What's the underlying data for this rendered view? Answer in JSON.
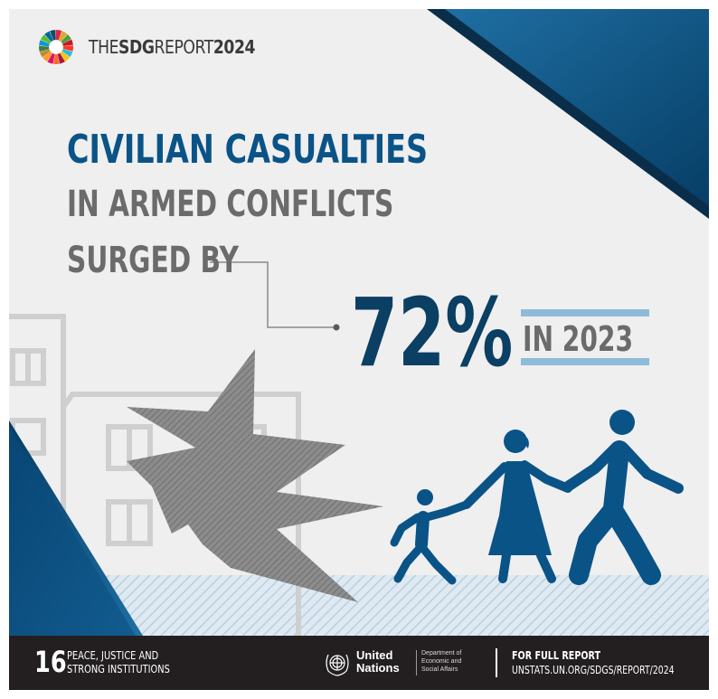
{
  "header": {
    "report_prefix": "THE",
    "report_bold": "SDG",
    "report_middle": "REPORT",
    "report_year": "2024",
    "icon": "sdg-color-wheel-icon"
  },
  "headline": {
    "line1": "CIVILIAN CASUALTIES",
    "line2": "IN ARMED CONFLICTS",
    "line3": "SURGED BY"
  },
  "stat": {
    "value": "72%",
    "period": "IN 2023"
  },
  "illustration": {
    "icons": [
      "building-outline-icon",
      "explosion-icon",
      "fleeing-family-icon"
    ]
  },
  "footer": {
    "goal_number": "16",
    "goal_name": "PEACE, JUSTICE AND\nSTRONG INSTITUTIONS",
    "un_name": "United\nNations",
    "un_department": "Department of\nEconomic and\nSocial Affairs",
    "report_label": "FOR FULL REPORT",
    "report_url": "UNSTATS.UN.ORG/SDGS/REPORT/2024"
  },
  "colors": {
    "primary_blue": "#0a5387",
    "dark_blue": "#0b3f63",
    "accent_light_blue": "#8ebcd8",
    "gray_text": "#6b6b6b",
    "background": "#efefef",
    "footer_bg": "#231f20"
  }
}
